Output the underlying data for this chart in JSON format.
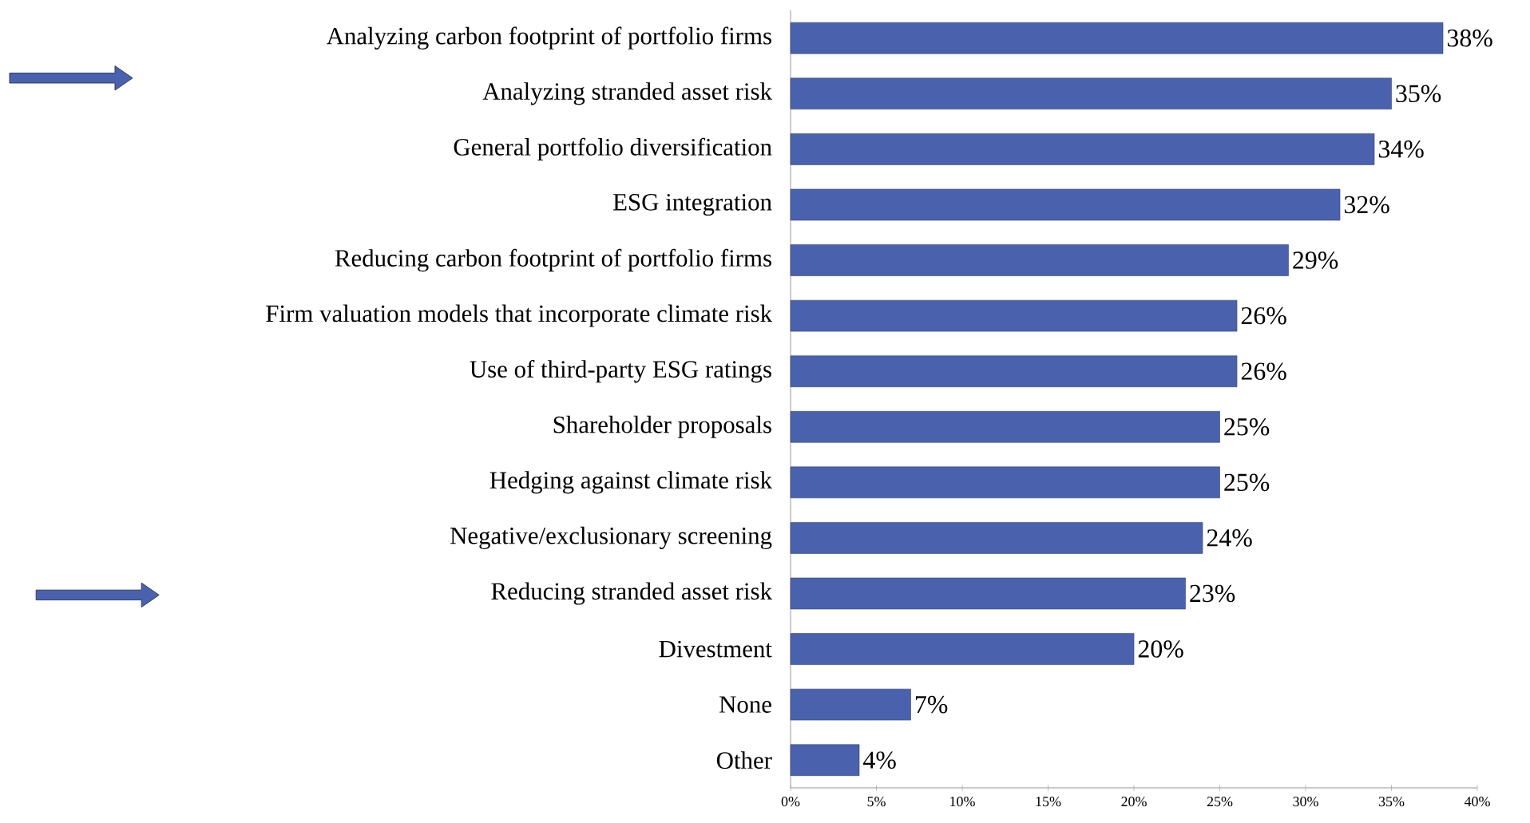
{
  "chart_data": {
    "type": "bar",
    "orientation": "horizontal",
    "color": "#4a62ad",
    "categories": [
      "Analyzing carbon footprint of portfolio firms",
      "Analyzing stranded asset risk",
      "General portfolio diversification",
      "ESG integration",
      "Reducing carbon footprint of portfolio firms",
      "Firm valuation models that incorporate climate risk",
      "Use of third-party ESG ratings",
      "Shareholder proposals",
      "Hedging against climate risk",
      "Negative/exclusionary screening",
      "Reducing stranded asset risk",
      "Divestment",
      "None",
      "Other"
    ],
    "values": [
      38,
      35,
      34,
      32,
      29,
      26,
      26,
      25,
      25,
      24,
      23,
      20,
      7,
      4
    ],
    "value_labels": [
      "38%",
      "35%",
      "34%",
      "32%",
      "29%",
      "26%",
      "26%",
      "25%",
      "25%",
      "24%",
      "23%",
      "20%",
      "7%",
      "4%"
    ],
    "xlim": [
      0,
      40
    ],
    "xticks": [
      {
        "value": 0,
        "label": "0%"
      },
      {
        "value": 5,
        "label": "5%"
      },
      {
        "value": 10,
        "label": "10%"
      },
      {
        "value": 15,
        "label": "15%"
      },
      {
        "value": 20,
        "label": "20%"
      },
      {
        "value": 25,
        "label": "25%"
      },
      {
        "value": 30,
        "label": "30%"
      },
      {
        "value": 35,
        "label": "35%"
      },
      {
        "value": 40,
        "label": "40%"
      }
    ],
    "grid": false
  }
}
